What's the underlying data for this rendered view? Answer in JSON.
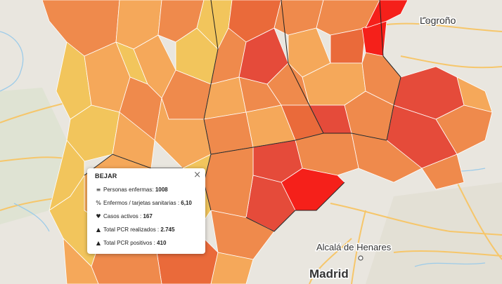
{
  "colors": {
    "background": "#e9e6df",
    "choropleth_yellow": "#f2c55c",
    "choropleth_light_orange": "#f5a85a",
    "choropleth_orange": "#ef8a4c",
    "choropleth_dark_orange": "#ea6a3a",
    "choropleth_red": "#e54b3a",
    "choropleth_bright_red": "#f5201a",
    "road": "#f6c66a",
    "river": "#9ccbe9",
    "boundary": "#222222"
  },
  "cities": {
    "logrono": "Logroño",
    "alcala": "Alcalá de Henares",
    "madrid": "Madrid"
  },
  "popup": {
    "title": "BEJAR",
    "close_symbol": "×",
    "rows": [
      {
        "icon": "bed-icon",
        "glyph": "≡",
        "label": "Personas enfermas:",
        "value": "1008"
      },
      {
        "icon": "percent-icon",
        "glyph": "%",
        "label": "Enfermos / tarjetas sanitarias :",
        "value": "6,10"
      },
      {
        "icon": "heartbeat-icon",
        "glyph": "♥",
        "label": "Casos activos :",
        "value": "167"
      },
      {
        "icon": "flask-icon",
        "glyph": "▲",
        "label": "Total PCR realizados :",
        "value": "2.745"
      },
      {
        "icon": "flask-icon",
        "glyph": "▲",
        "label": "Total PCR positivos :",
        "value": "410"
      }
    ]
  }
}
